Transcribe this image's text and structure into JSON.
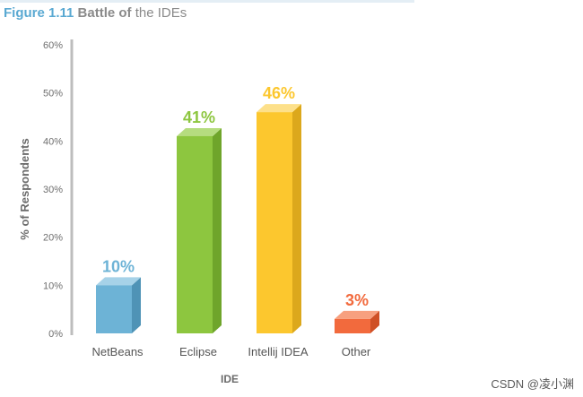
{
  "figure": {
    "number": "Figure 1.11",
    "title_bold": "Battle of",
    "title_rest": " the IDEs"
  },
  "chart_data": {
    "type": "bar",
    "title": "Battle of the IDEs",
    "xlabel": "IDE",
    "ylabel": "% of Respondents",
    "ylim": [
      0,
      60
    ],
    "yticks": [
      0,
      10,
      20,
      30,
      40,
      50,
      60
    ],
    "ytick_labels": [
      "0%",
      "10%",
      "20%",
      "30%",
      "40%",
      "50%",
      "60%"
    ],
    "categories": [
      "NetBeans",
      "Eclipse",
      "Intellij IDEA",
      "Other"
    ],
    "values": [
      10,
      41,
      46,
      3
    ],
    "value_labels": [
      "10%",
      "41%",
      "46%",
      "3%"
    ],
    "colors": [
      "#6db3d6",
      "#8dc63f",
      "#fcc72e",
      "#f26a3d"
    ],
    "side_colors": [
      "#4f93b6",
      "#6fa52b",
      "#dca81c",
      "#cf5026"
    ],
    "top_colors": [
      "#a6d2e8",
      "#b5dc7f",
      "#fde08a",
      "#f7a07f"
    ],
    "grid": false,
    "legend": "none"
  },
  "watermark": "CSDN @凌小渊"
}
